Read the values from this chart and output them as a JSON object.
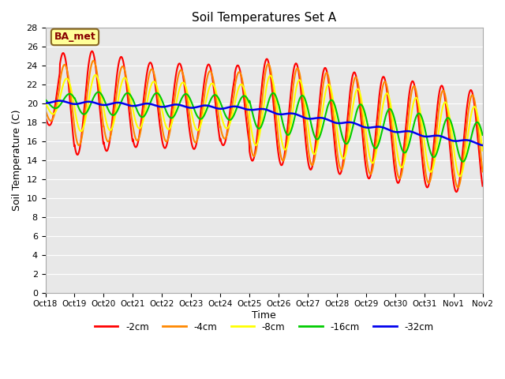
{
  "title": "Soil Temperatures Set A",
  "xlabel": "Time",
  "ylabel": "Soil Temperature (C)",
  "ylim": [
    0,
    28
  ],
  "yticks": [
    0,
    2,
    4,
    6,
    8,
    10,
    12,
    14,
    16,
    18,
    20,
    22,
    24,
    26,
    28
  ],
  "xtick_labels": [
    "Oct 18",
    "Oct 19",
    "Oct 20",
    "Oct 21",
    "Oct 22",
    "Oct 23",
    "Oct 24",
    "Oct 25",
    "Oct 26",
    "Oct 27",
    "Oct 28",
    "Oct 29",
    "Oct 30",
    "Oct 31",
    "Nov 1",
    "Nov 2"
  ],
  "bg_color": "#e8e8e8",
  "fig_bg": "#ffffff",
  "grid_color": "#ffffff",
  "series_colors": [
    "#ff0000",
    "#ff8800",
    "#ffff00",
    "#00cc00",
    "#0000ee"
  ],
  "series_labels": [
    "-2cm",
    "-4cm",
    "-8cm",
    "-16cm",
    "-32cm"
  ],
  "annotation_text": "BA_met",
  "annotation_bg": "#ffff99",
  "annotation_border": "#886622"
}
